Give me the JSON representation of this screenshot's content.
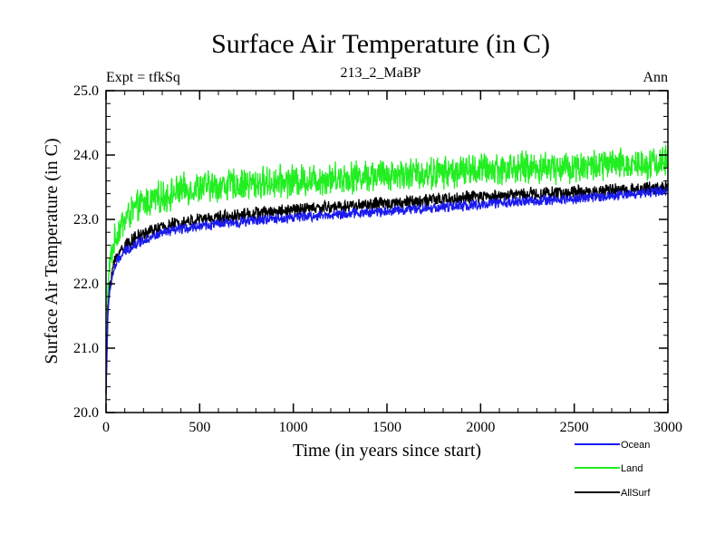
{
  "chart_data": {
    "type": "line",
    "title": "Surface Air Temperature (in C)",
    "subtitle_left": "Expt = tfkSq",
    "subtitle_center": "213_2_MaBP",
    "subtitle_right": "Ann",
    "xlabel": "Time (in years since start)",
    "ylabel": "Surface Air Temperature (in C)",
    "xlim": [
      0,
      3000
    ],
    "ylim": [
      20.0,
      25.0
    ],
    "xticks": [
      0,
      500,
      1000,
      1500,
      2000,
      2500,
      3000
    ],
    "xtick_labels": [
      "0",
      "500",
      "1000",
      "1500",
      "2000",
      "2500",
      "3000"
    ],
    "yticks": [
      20.0,
      21.0,
      22.0,
      23.0,
      24.0,
      25.0
    ],
    "ytick_labels": [
      "20.0",
      "21.0",
      "22.0",
      "23.0",
      "24.0",
      "25.0"
    ],
    "grid": false,
    "legend_position": "bottom-right",
    "series": [
      {
        "name": "Land",
        "color": "#22ee22",
        "noise": 0.22,
        "x": [
          0,
          5,
          10,
          20,
          40,
          60,
          100,
          150,
          200,
          300,
          400,
          500,
          750,
          1000,
          1250,
          1500,
          1750,
          2000,
          2250,
          2500,
          2750,
          3000
        ],
        "values": [
          20.2,
          21.2,
          21.9,
          22.3,
          22.6,
          22.8,
          23.0,
          23.15,
          23.25,
          23.35,
          23.45,
          23.5,
          23.55,
          23.6,
          23.65,
          23.7,
          23.72,
          23.78,
          23.8,
          23.82,
          23.85,
          23.9
        ]
      },
      {
        "name": "AllSurf",
        "color": "#000000",
        "noise": 0.09,
        "x": [
          0,
          5,
          10,
          20,
          40,
          60,
          100,
          150,
          200,
          300,
          400,
          500,
          750,
          1000,
          1250,
          1500,
          1750,
          2000,
          2250,
          2500,
          2750,
          3000
        ],
        "values": [
          20.3,
          21.0,
          21.6,
          22.0,
          22.3,
          22.45,
          22.6,
          22.7,
          22.78,
          22.88,
          22.95,
          23.0,
          23.08,
          23.15,
          23.2,
          23.25,
          23.3,
          23.35,
          23.4,
          23.42,
          23.45,
          23.5
        ]
      },
      {
        "name": "Ocean",
        "color": "#1a1aee",
        "noise": 0.07,
        "x": [
          0,
          5,
          10,
          20,
          40,
          60,
          100,
          150,
          200,
          300,
          400,
          500,
          750,
          1000,
          1250,
          1500,
          1750,
          2000,
          2250,
          2500,
          2750,
          3000
        ],
        "values": [
          20.3,
          20.9,
          21.5,
          21.9,
          22.2,
          22.35,
          22.5,
          22.6,
          22.68,
          22.78,
          22.85,
          22.9,
          22.97,
          23.03,
          23.08,
          23.13,
          23.18,
          23.23,
          23.28,
          23.32,
          23.38,
          23.45
        ]
      }
    ],
    "legend": [
      {
        "name": "Ocean",
        "color": "#1a1aee"
      },
      {
        "name": "Land",
        "color": "#22ee22"
      },
      {
        "name": "AllSurf",
        "color": "#000000"
      }
    ]
  }
}
